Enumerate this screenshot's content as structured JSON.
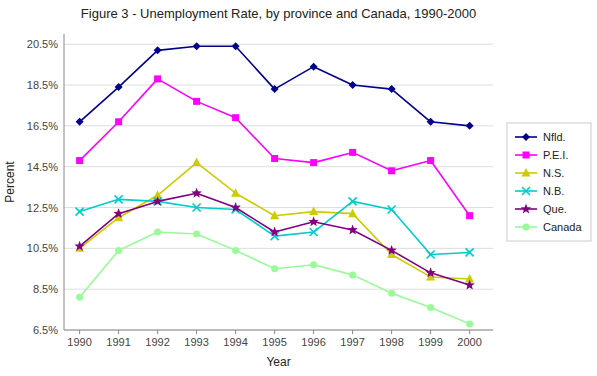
{
  "chart_data": {
    "type": "line",
    "title": "Figure 3 - Unemployment Rate, by province and Canada, 1990-2000",
    "x_label": "Year",
    "y_label": "Percent",
    "x": [
      1990,
      1991,
      1992,
      1993,
      1994,
      1995,
      1996,
      1997,
      1998,
      1999,
      2000
    ],
    "xlim": [
      1989.6,
      2000.6
    ],
    "xticks": [
      1990,
      1991,
      1992,
      1993,
      1994,
      1995,
      1996,
      1997,
      1998,
      1999,
      2000
    ],
    "ylim": [
      6.5,
      21.0
    ],
    "yticks": [
      {
        "value": 6.5,
        "label": "6.5%"
      },
      {
        "value": 8.5,
        "label": "8.5%"
      },
      {
        "value": 10.5,
        "label": "10.5%"
      },
      {
        "value": 12.5,
        "label": "12.5%"
      },
      {
        "value": 14.5,
        "label": "14.5%"
      },
      {
        "value": 16.5,
        "label": "16.5%"
      },
      {
        "value": 18.5,
        "label": "18.5%"
      },
      {
        "value": 20.5,
        "label": "20.5%"
      }
    ],
    "grid": true,
    "legend": "right",
    "series": [
      {
        "name": "Nfld.",
        "color": "#00008B",
        "marker": "diamond",
        "values": [
          16.7,
          18.4,
          20.2,
          20.4,
          20.4,
          18.3,
          19.4,
          18.5,
          18.3,
          16.7,
          16.5
        ]
      },
      {
        "name": "P.E.I.",
        "color": "#FF00FF",
        "marker": "square",
        "values": [
          14.8,
          16.7,
          18.8,
          17.7,
          16.9,
          14.9,
          14.7,
          15.2,
          14.3,
          14.8,
          12.1
        ]
      },
      {
        "name": "N.S.",
        "color": "#CCCC00",
        "marker": "triangle",
        "values": [
          10.5,
          12.0,
          13.1,
          14.7,
          13.2,
          12.1,
          12.3,
          12.2,
          10.2,
          9.1,
          9.0
        ]
      },
      {
        "name": "N.B.",
        "color": "#00CCCC",
        "marker": "x",
        "values": [
          12.3,
          12.9,
          12.8,
          12.5,
          12.4,
          11.1,
          11.3,
          12.8,
          12.4,
          10.2,
          10.3
        ]
      },
      {
        "name": "Que.",
        "color": "#800080",
        "marker": "star",
        "values": [
          10.6,
          12.2,
          12.8,
          13.2,
          12.5,
          11.3,
          11.8,
          11.4,
          10.4,
          9.3,
          8.7
        ]
      },
      {
        "name": "Canada",
        "color": "#98FB98",
        "marker": "circle",
        "values": [
          8.1,
          10.4,
          11.3,
          11.2,
          10.4,
          9.5,
          9.7,
          9.2,
          8.3,
          7.6,
          6.8
        ]
      }
    ]
  }
}
